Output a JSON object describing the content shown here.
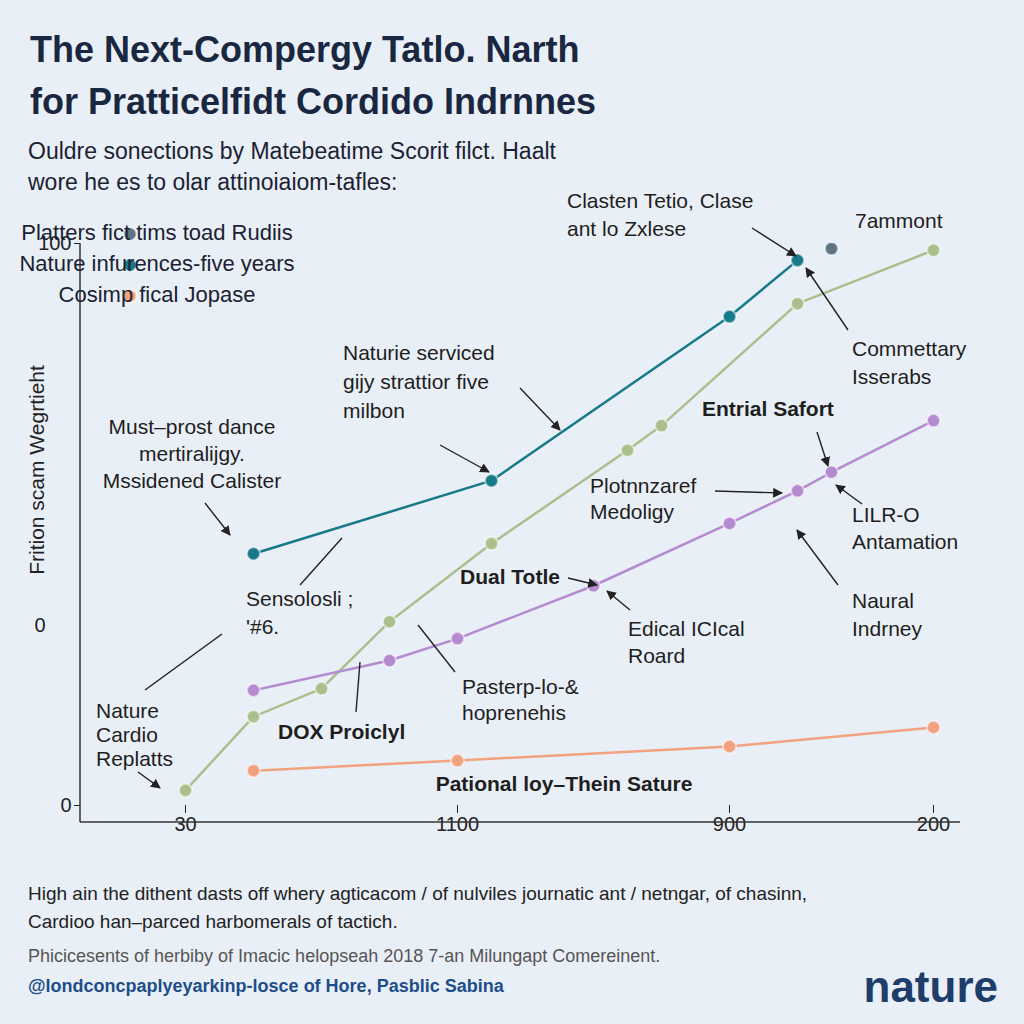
{
  "chart_data": {
    "type": "line",
    "title": [
      "The Next-Compergy Tatlo. Narth",
      "for Pratticelfidt Cordido Indrnnes"
    ],
    "subtitle": [
      "Ouldre sonections by Matebeatime Scorit filct. Haalt",
      "wore he es to olar attinoiaiom-tafles:"
    ],
    "y_label": "Frition scam Wegrtieht",
    "categories": [
      "30",
      null,
      null,
      null,
      null,
      null,
      null,
      null,
      "1100",
      null,
      null,
      null,
      null,
      null,
      null,
      null,
      "900",
      null,
      null,
      null,
      null,
      null,
      "200"
    ],
    "series": [
      {
        "name": "Platters fict tims toad Rudiis",
        "type": "scatter",
        "marker": "circle",
        "color": "#5e7485",
        "values": [
          null,
          null,
          null,
          null,
          null,
          null,
          null,
          null,
          null,
          null,
          null,
          null,
          null,
          null,
          null,
          null,
          null,
          null,
          97.0,
          99.1,
          null,
          null,
          null
        ]
      },
      {
        "name": "Nature infurences-five years",
        "type": "line",
        "marker": "circle",
        "color": "#17798a",
        "values": [
          null,
          null,
          44.8,
          null,
          null,
          null,
          null,
          null,
          null,
          57.8,
          null,
          null,
          null,
          null,
          null,
          null,
          87.0,
          null,
          97.0,
          null,
          null,
          null,
          null
        ]
      },
      {
        "name": "Cosimp fical Jopase",
        "type": "line",
        "marker": "circle",
        "color": "#f2a27f",
        "values": [
          null,
          null,
          6.2,
          null,
          null,
          null,
          null,
          null,
          8.0,
          null,
          null,
          null,
          null,
          null,
          null,
          null,
          10.5,
          null,
          null,
          null,
          null,
          null,
          13.9
        ]
      },
      {
        "type": "line",
        "marker": "circle",
        "color": "#a9c08c",
        "values": [
          2.7,
          null,
          15.8,
          null,
          20.8,
          null,
          32.7,
          null,
          null,
          46.6,
          null,
          null,
          null,
          63.2,
          67.6,
          null,
          null,
          null,
          89.3,
          null,
          null,
          null,
          98.8
        ]
      },
      {
        "type": "line",
        "marker": "circle",
        "color": "#b48ad0",
        "values": [
          null,
          null,
          20.5,
          null,
          null,
          null,
          25.8,
          null,
          29.7,
          null,
          null,
          null,
          39.1,
          null,
          null,
          null,
          50.2,
          null,
          56.0,
          59.3,
          null,
          null,
          68.5
        ]
      }
    ],
    "ylim": [
      0,
      100
    ],
    "yticks": [
      0,
      100
    ],
    "legend": "top-left",
    "annotations": [
      "Clasten Tetio, Clase\nant lo Zxlese",
      "7ammont",
      "Commettary\nIsserabs",
      "Naturie serviced\ngijy strattior five\nmilbon",
      "Entrial Safort",
      "Must–prost dance\nmertiralijgy.\nMssidened Calister",
      "Plotnnzaref\nMedoligy",
      "LILR-O\nAntamation",
      "Dual Totle",
      "Edical ICIcal\nRoard",
      "Naural\nIndrney",
      "Sensolosli ;\n'#6.",
      "Pasterp-lo-&\nhoprenehis",
      "DOX Proiclyl",
      "Nature\nCardio\nReplatts",
      "Pational loy–Thein Sature",
      "0"
    ],
    "caption": [
      "High ain the dithent dasts off whery agticacom / of nulviles journatic ant / netngar, of chasinn,",
      "Cardioo han–parced harbomerals of tactich."
    ],
    "source": "Phicicesents of herbiby of Imacic helopseah 2018 7-an Milungapt Comereinent.",
    "credit": "@londconcpaplyeyarkinp-losce of Hore, Pasblic Sabina",
    "logo": "nature"
  }
}
